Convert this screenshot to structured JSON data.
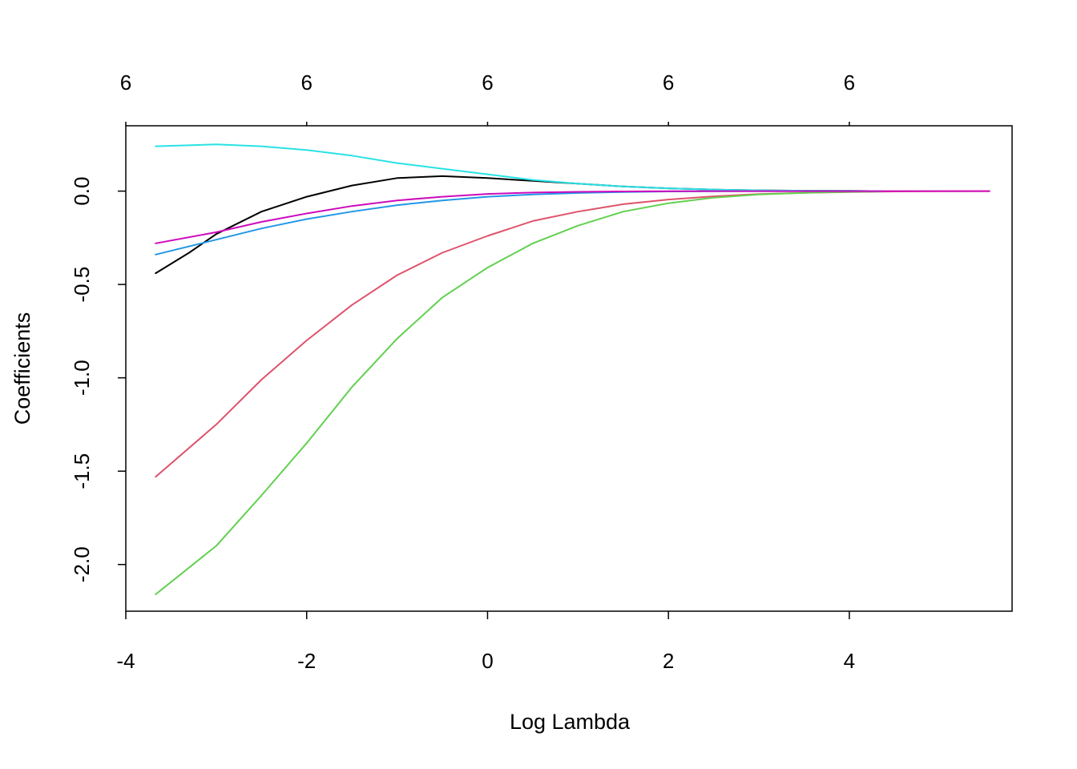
{
  "chart_data": {
    "type": "line",
    "title": "",
    "xlabel": "Log Lambda",
    "ylabel": "Coefficients",
    "xlim": [
      -4,
      5.8
    ],
    "ylim": [
      -2.25,
      0.35
    ],
    "x_ticks": [
      -4,
      -2,
      0,
      2,
      4
    ],
    "x_tick_labels": [
      "-4",
      "-2",
      "0",
      "2",
      "4"
    ],
    "y_ticks": [
      -2.0,
      -1.5,
      -1.0,
      -0.5,
      0.0
    ],
    "y_tick_labels": [
      "-2.0",
      "-1.5",
      "-1.0",
      "-0.5",
      "0.0"
    ],
    "top_ticks": [
      -4,
      -2,
      0,
      2,
      4
    ],
    "top_tick_labels": [
      "6",
      "6",
      "6",
      "6",
      "6"
    ],
    "grid": false,
    "legend": "none",
    "series": [
      {
        "color": "#000000",
        "x": [
          -3.67,
          -3.3,
          -3.0,
          -2.5,
          -2.0,
          -1.5,
          -1.0,
          -0.5,
          0.0,
          0.5,
          1.0,
          1.5,
          2.0,
          2.5,
          3.0,
          3.5,
          4.0,
          4.35
        ],
        "y": [
          -0.44,
          -0.33,
          -0.23,
          -0.11,
          -0.03,
          0.03,
          0.07,
          0.08,
          0.07,
          0.055,
          0.04,
          0.025,
          0.015,
          0.008,
          0.004,
          0.002,
          0.001,
          0.0
        ]
      },
      {
        "color": "#DF536B",
        "x": [
          -3.67,
          -3.0,
          -2.5,
          -2.0,
          -1.5,
          -1.0,
          -0.5,
          0.0,
          0.5,
          1.0,
          1.5,
          2.0,
          2.5,
          3.0,
          3.5,
          4.0,
          4.5,
          5.0,
          5.55
        ],
        "y": [
          -1.53,
          -1.25,
          -1.01,
          -0.8,
          -0.61,
          -0.45,
          -0.33,
          -0.24,
          -0.16,
          -0.11,
          -0.07,
          -0.045,
          -0.028,
          -0.016,
          -0.009,
          -0.005,
          -0.002,
          -0.001,
          0.0
        ]
      },
      {
        "color": "#61D04F",
        "x": [
          -3.67,
          -3.0,
          -2.5,
          -2.0,
          -1.5,
          -1.0,
          -0.5,
          0.0,
          0.5,
          1.0,
          1.5,
          2.0,
          2.5,
          3.0,
          3.5,
          4.0,
          4.35
        ],
        "y": [
          -2.16,
          -1.9,
          -1.63,
          -1.35,
          -1.05,
          -0.79,
          -0.57,
          -0.41,
          -0.28,
          -0.185,
          -0.11,
          -0.065,
          -0.035,
          -0.018,
          -0.009,
          -0.004,
          -0.002
        ]
      },
      {
        "color": "#2297E6",
        "x": [
          -3.67,
          -3.0,
          -2.5,
          -2.0,
          -1.5,
          -1.0,
          -0.5,
          0.0,
          0.5,
          1.0,
          1.5,
          2.0,
          2.5,
          3.0,
          3.5,
          4.0,
          4.35
        ],
        "y": [
          -0.34,
          -0.26,
          -0.2,
          -0.15,
          -0.11,
          -0.075,
          -0.05,
          -0.03,
          -0.018,
          -0.01,
          -0.005,
          -0.002,
          -0.001,
          0.0,
          0.0,
          0.0,
          0.0
        ]
      },
      {
        "color": "#28E2E5",
        "x": [
          -3.67,
          -3.0,
          -2.5,
          -2.0,
          -1.5,
          -1.0,
          -0.5,
          0.0,
          0.5,
          1.0,
          1.5,
          2.0,
          2.5,
          3.0,
          3.5,
          4.0,
          4.35
        ],
        "y": [
          0.24,
          0.25,
          0.24,
          0.22,
          0.19,
          0.15,
          0.12,
          0.09,
          0.06,
          0.04,
          0.025,
          0.015,
          0.008,
          0.004,
          0.002,
          0.001,
          0.0
        ]
      },
      {
        "color": "#CD0BBC",
        "x": [
          -3.67,
          -3.0,
          -2.5,
          -2.0,
          -1.5,
          -1.0,
          -0.5,
          0.0,
          0.5,
          1.0,
          1.5,
          2.0,
          2.5,
          3.0,
          3.5,
          4.0,
          4.5,
          5.0,
          5.55
        ],
        "y": [
          -0.28,
          -0.22,
          -0.165,
          -0.12,
          -0.08,
          -0.05,
          -0.03,
          -0.015,
          -0.008,
          -0.004,
          -0.002,
          -0.001,
          0.0,
          0.0,
          0.0,
          0.0,
          0.0,
          0.0,
          0.0
        ]
      }
    ]
  }
}
